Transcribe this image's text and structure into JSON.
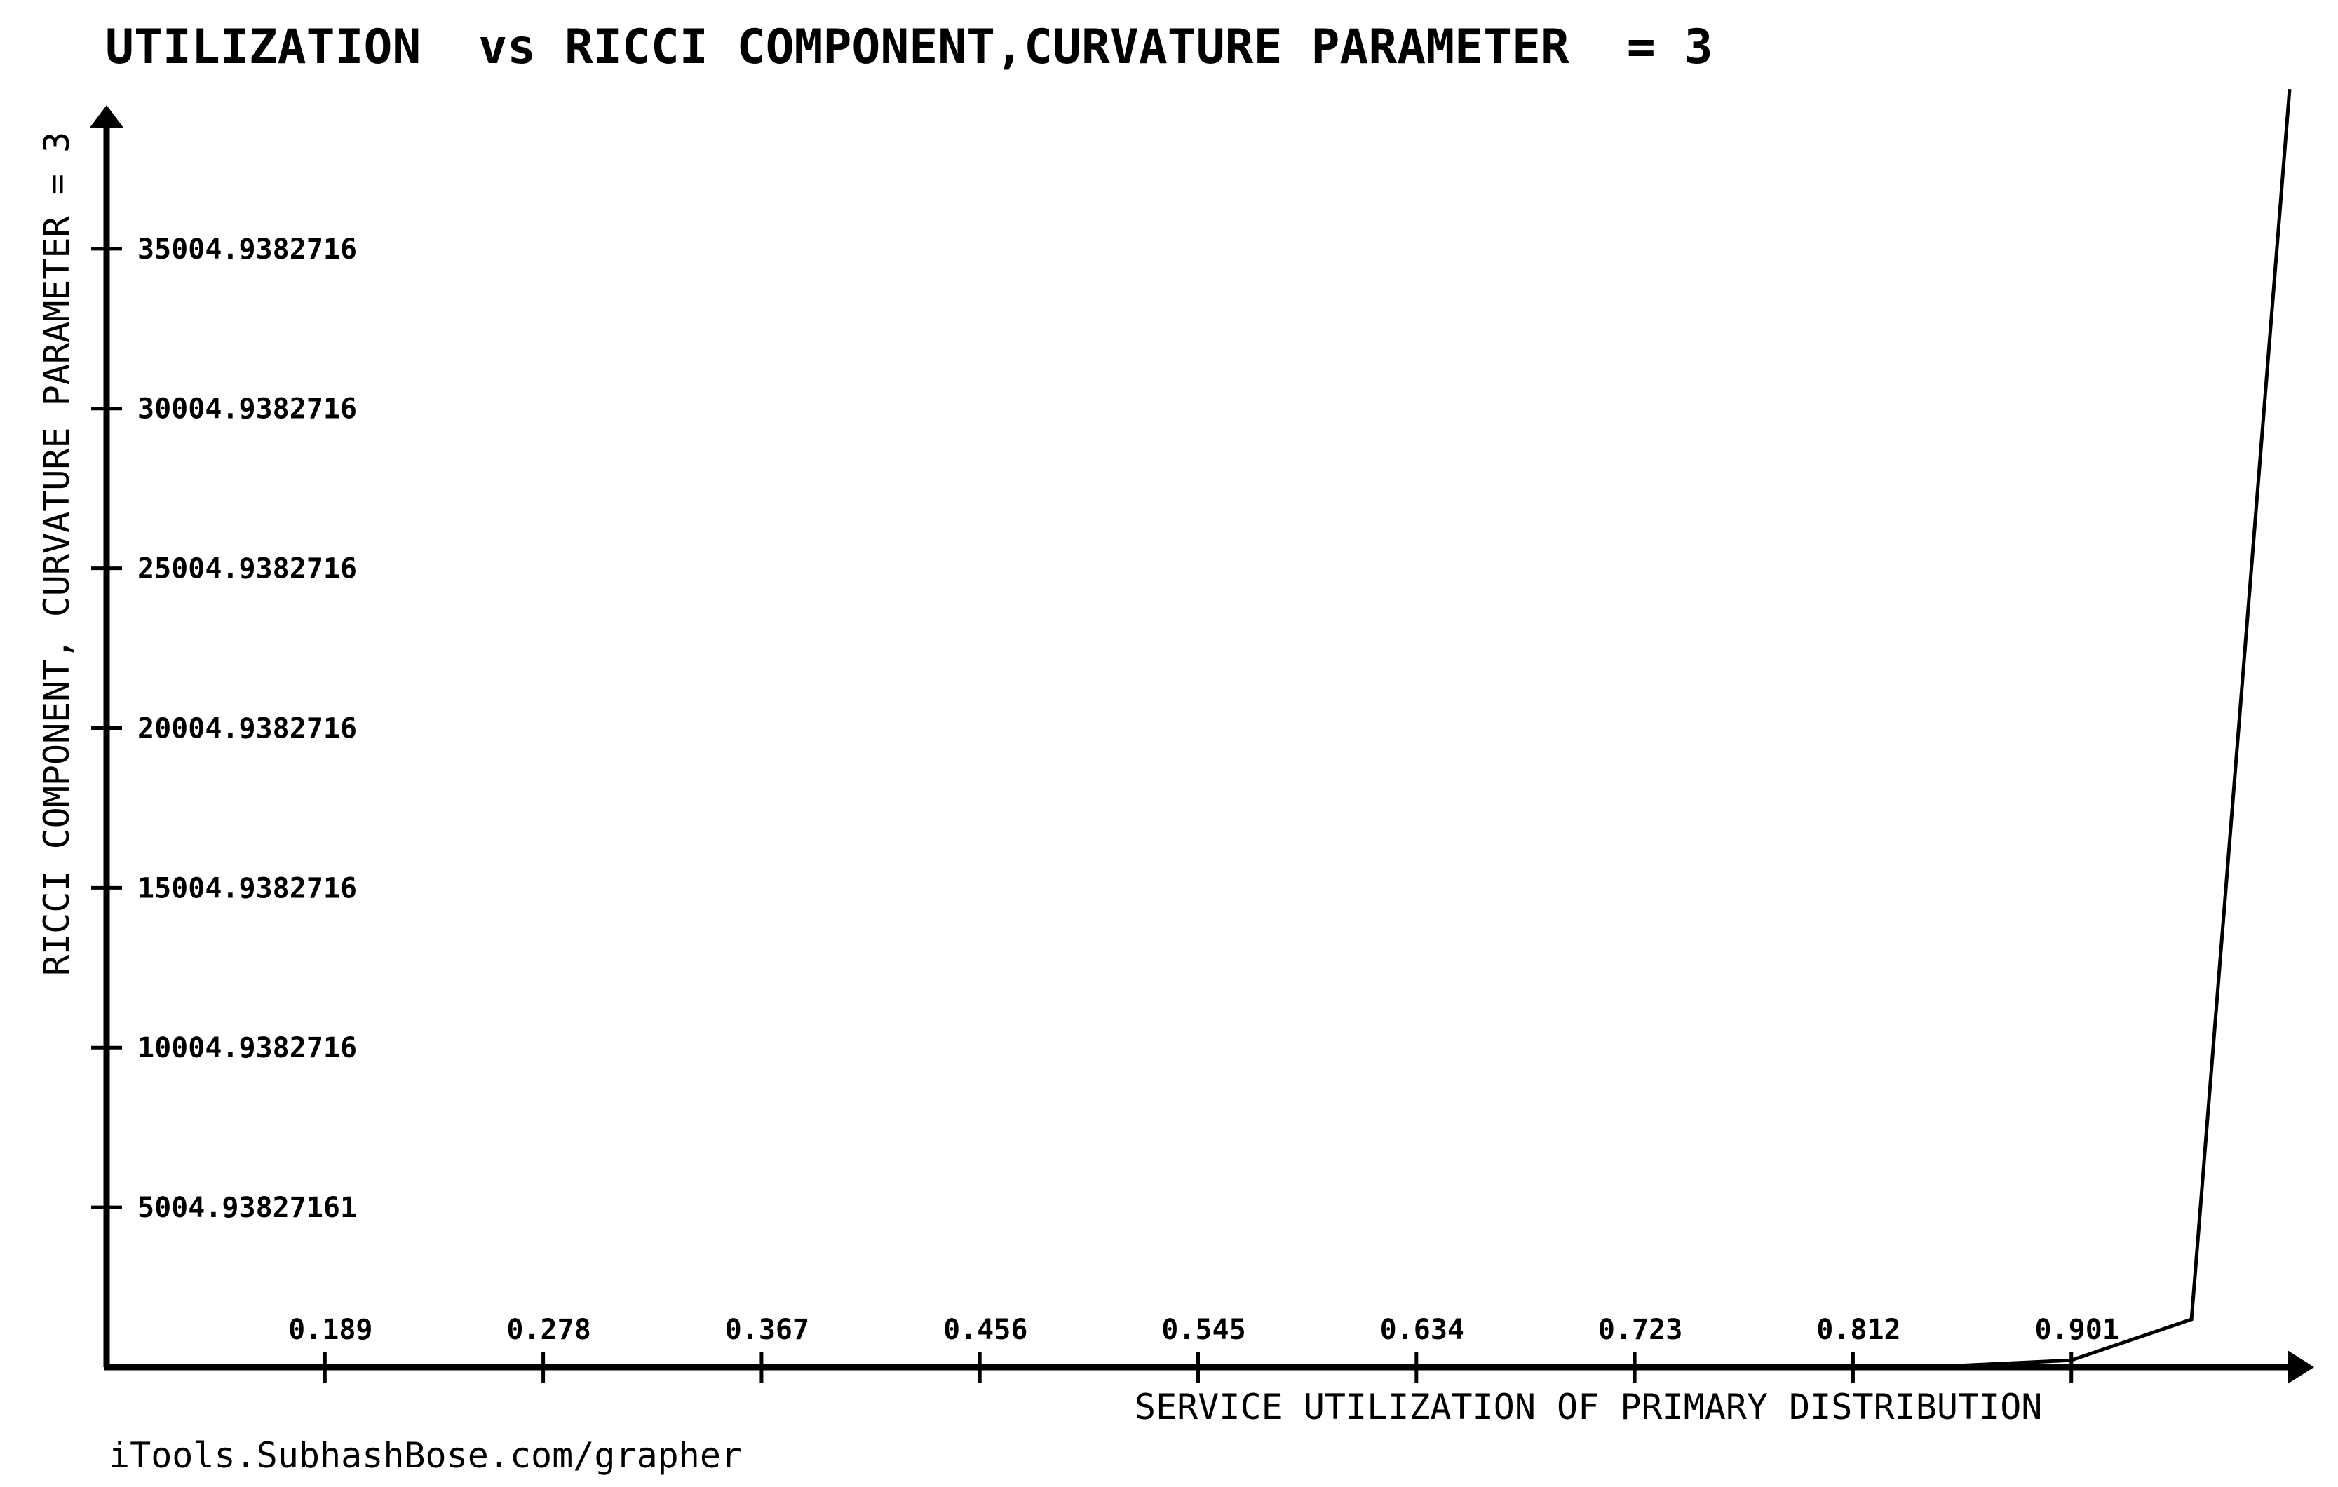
{
  "chart_data": {
    "type": "line",
    "title": "UTILIZATION  vs RICCI COMPONENT,CURVATURE PARAMETER  = 3",
    "xlabel": "SERVICE UTILIZATION OF PRIMARY DISTRIBUTION",
    "ylabel": "RICCI COMPONENT, CURVATURE PARAMETER = 3",
    "x_ticks": [
      "0.189",
      "0.278",
      "0.367",
      "0.456",
      "0.545",
      "0.634",
      "0.723",
      "0.812",
      "0.901"
    ],
    "y_ticks": [
      "5004.93827161",
      "10004.9382716",
      "15004.9382716",
      "20004.9382716",
      "25004.9382716",
      "30004.9382716",
      "35004.9382716"
    ],
    "xlim": [
      0.1,
      1.0
    ],
    "ylim": [
      4.94,
      39500
    ],
    "grid": false,
    "series": [
      {
        "x": [
          0.812,
          0.857,
          0.901,
          0.95,
          0.99
        ],
        "y": [
          4.94,
          60,
          220,
          1500,
          40000
        ]
      }
    ]
  },
  "credit": "iTools.SubhashBose.com/grapher"
}
